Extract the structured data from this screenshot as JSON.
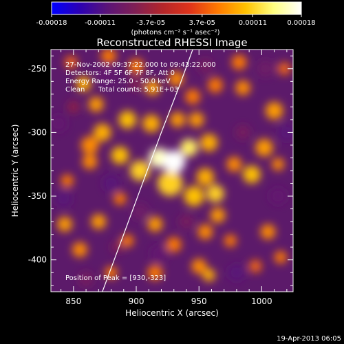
{
  "chart_data": {
    "type": "heatmap",
    "title": "Reconstructed RHESSI Image",
    "xlabel": "Heliocentric X (arcsec)",
    "ylabel": "Heliocentric Y (arcsec)",
    "xlim": [
      832,
      1025
    ],
    "ylim": [
      -425,
      -235
    ],
    "xticks": [
      850,
      900,
      950,
      1000
    ],
    "yticks": [
      -250,
      -300,
      -350,
      -400
    ],
    "colorbar": {
      "ticks": [
        "-0.00018",
        "-0.00011",
        "-3.7e-05",
        "3.7e-05",
        "0.00011",
        "0.00018"
      ],
      "tick_values": [
        -0.00018,
        -0.00011,
        -3.7e-05,
        3.7e-05,
        0.00011,
        0.00018
      ],
      "range": [
        -0.00018,
        0.00018
      ],
      "unit_label": "(photons cm⁻² s⁻¹ asec⁻²)",
      "colormap": [
        "#0000ff",
        "#2b00b4",
        "#5a1478",
        "#7f1f55",
        "#b4262a",
        "#e0341a",
        "#ff7a00",
        "#ffc200",
        "#ffff80",
        "#ffffff"
      ]
    },
    "annotations": {
      "time": "27-Nov-2002 09:37:22.000 to 09:43:22.000",
      "detectors": "Detectors: 4F 5F 6F 7F 8F, Att 0",
      "energy": "Energy Range: 25.0 - 50.0 keV",
      "clean": "Clean",
      "counts": "Total counts: 5.91E+03",
      "peak": "Position of Peak = [930,-323]"
    },
    "peak": [
      930,
      -323
    ],
    "limb_curve": [
      [
        873,
        -425
      ],
      [
        890,
        -380
      ],
      [
        905,
        -340
      ],
      [
        920,
        -300
      ],
      [
        935,
        -262
      ],
      [
        945,
        -235
      ]
    ],
    "sources": [
      {
        "x": 930,
        "y": -323,
        "value": 0.00018,
        "r": 9
      },
      {
        "x": 918,
        "y": -320,
        "value": 0.00016,
        "r": 8
      },
      {
        "x": 942,
        "y": -312,
        "value": 0.00013,
        "r": 7
      },
      {
        "x": 927,
        "y": -340,
        "value": 0.00011,
        "r": 10
      },
      {
        "x": 903,
        "y": -330,
        "value": 0.00011,
        "r": 8
      },
      {
        "x": 887,
        "y": -318,
        "value": 0.0001,
        "r": 7
      },
      {
        "x": 893,
        "y": -290,
        "value": 0.0001,
        "r": 7
      },
      {
        "x": 912,
        "y": -293,
        "value": 9e-05,
        "r": 7
      },
      {
        "x": 933,
        "y": -290,
        "value": 8e-05,
        "r": 6
      },
      {
        "x": 958,
        "y": -308,
        "value": 9e-05,
        "r": 7
      },
      {
        "x": 955,
        "y": -335,
        "value": 9e-05,
        "r": 7
      },
      {
        "x": 946,
        "y": -350,
        "value": 0.0001,
        "r": 8
      },
      {
        "x": 963,
        "y": -348,
        "value": 0.00011,
        "r": 7
      },
      {
        "x": 978,
        "y": -325,
        "value": 7e-05,
        "r": 6
      },
      {
        "x": 992,
        "y": -333,
        "value": 0.0001,
        "r": 7
      },
      {
        "x": 1002,
        "y": -312,
        "value": 8e-05,
        "r": 7
      },
      {
        "x": 1013,
        "y": -325,
        "value": 7e-05,
        "r": 5
      },
      {
        "x": 948,
        "y": -290,
        "value": 8e-05,
        "r": 6
      },
      {
        "x": 945,
        "y": -272,
        "value": 6e-05,
        "r": 6
      },
      {
        "x": 963,
        "y": -263,
        "value": 6e-05,
        "r": 6
      },
      {
        "x": 985,
        "y": -265,
        "value": 7e-05,
        "r": 6
      },
      {
        "x": 982,
        "y": -245,
        "value": 6e-05,
        "r": 6
      },
      {
        "x": 1010,
        "y": -283,
        "value": 8e-05,
        "r": 7
      },
      {
        "x": 858,
        "y": -262,
        "value": 9e-05,
        "r": 6
      },
      {
        "x": 868,
        "y": -278,
        "value": 8e-05,
        "r": 6
      },
      {
        "x": 863,
        "y": -310,
        "value": 7e-05,
        "r": 7
      },
      {
        "x": 873,
        "y": -300,
        "value": 9e-05,
        "r": 7
      },
      {
        "x": 863,
        "y": -323,
        "value": 7e-05,
        "r": 6
      },
      {
        "x": 878,
        "y": -240,
        "value": 6e-05,
        "r": 6
      },
      {
        "x": 900,
        "y": -248,
        "value": 6e-05,
        "r": 6
      },
      {
        "x": 913,
        "y": -265,
        "value": 8e-05,
        "r": 6
      },
      {
        "x": 932,
        "y": -258,
        "value": 7e-05,
        "r": 6
      },
      {
        "x": 843,
        "y": -372,
        "value": 8e-05,
        "r": 6
      },
      {
        "x": 855,
        "y": -392,
        "value": 7e-05,
        "r": 6
      },
      {
        "x": 870,
        "y": -370,
        "value": 8e-05,
        "r": 6
      },
      {
        "x": 887,
        "y": -352,
        "value": 6e-05,
        "r": 5
      },
      {
        "x": 893,
        "y": -385,
        "value": 6e-05,
        "r": 5
      },
      {
        "x": 915,
        "y": -372,
        "value": 8e-05,
        "r": 6
      },
      {
        "x": 930,
        "y": -388,
        "value": 6e-05,
        "r": 6
      },
      {
        "x": 955,
        "y": -378,
        "value": 7e-05,
        "r": 6
      },
      {
        "x": 965,
        "y": -365,
        "value": 8e-05,
        "r": 6
      },
      {
        "x": 975,
        "y": -385,
        "value": 6e-05,
        "r": 5
      },
      {
        "x": 1005,
        "y": -378,
        "value": 7e-05,
        "r": 6
      },
      {
        "x": 950,
        "y": -405,
        "value": 7e-05,
        "r": 6
      },
      {
        "x": 958,
        "y": -412,
        "value": 9e-05,
        "r": 5
      },
      {
        "x": 880,
        "y": -410,
        "value": 6e-05,
        "r": 5
      },
      {
        "x": 915,
        "y": -410,
        "value": 6e-05,
        "r": 6
      },
      {
        "x": 995,
        "y": -405,
        "value": 5e-05,
        "r": 5
      },
      {
        "x": 1015,
        "y": -398,
        "value": 6e-05,
        "r": 5
      },
      {
        "x": 848,
        "y": -245,
        "value": 5e-05,
        "r": 5
      },
      {
        "x": 845,
        "y": -338,
        "value": 6e-05,
        "r": 5
      },
      {
        "x": 1018,
        "y": -250,
        "value": 5e-05,
        "r": 5
      }
    ],
    "negatives": [
      {
        "x": 875,
        "y": -255,
        "value": -9e-05,
        "r": 7
      },
      {
        "x": 900,
        "y": -262,
        "value": -6e-05,
        "r": 6
      },
      {
        "x": 955,
        "y": -248,
        "value": -7e-05,
        "r": 6
      },
      {
        "x": 1003,
        "y": -250,
        "value": -8e-05,
        "r": 7
      },
      {
        "x": 838,
        "y": -293,
        "value": -9e-05,
        "r": 7
      },
      {
        "x": 842,
        "y": -352,
        "value": -0.0001,
        "r": 7
      },
      {
        "x": 880,
        "y": -340,
        "value": -0.0001,
        "r": 7
      },
      {
        "x": 903,
        "y": -362,
        "value": -8e-05,
        "r": 7
      },
      {
        "x": 918,
        "y": -395,
        "value": -9e-05,
        "r": 7
      },
      {
        "x": 940,
        "y": -370,
        "value": -7e-05,
        "r": 6
      },
      {
        "x": 1020,
        "y": -300,
        "value": -0.0001,
        "r": 7
      },
      {
        "x": 1013,
        "y": -350,
        "value": -9e-05,
        "r": 7
      },
      {
        "x": 985,
        "y": -300,
        "value": -7e-05,
        "r": 6
      },
      {
        "x": 980,
        "y": -410,
        "value": -0.0001,
        "r": 7
      },
      {
        "x": 885,
        "y": -390,
        "value": -6e-05,
        "r": 5
      },
      {
        "x": 860,
        "y": -415,
        "value": -7e-05,
        "r": 6
      },
      {
        "x": 850,
        "y": -280,
        "value": -5e-05,
        "r": 5
      }
    ]
  },
  "footer": {
    "timestamp": "19-Apr-2013 06:05"
  }
}
